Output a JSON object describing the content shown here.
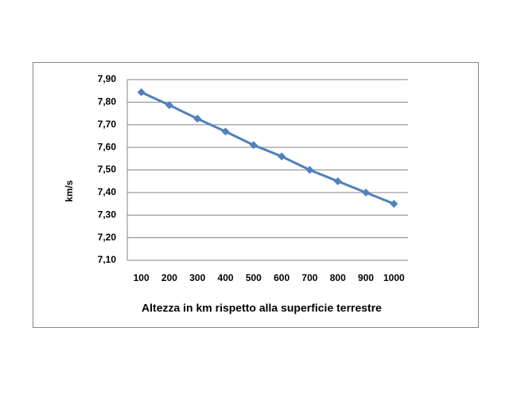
{
  "chart_data": {
    "type": "line",
    "x_label": "Altezza in km rispetto alla superficie terrestre",
    "y_label": "km/s",
    "categories": [
      "100",
      "200",
      "300",
      "400",
      "500",
      "600",
      "700",
      "800",
      "900",
      "1000"
    ],
    "series": [
      {
        "name": "km/s",
        "color": "#4f81bd",
        "values": [
          7.844,
          7.787,
          7.727,
          7.67,
          7.61,
          7.56,
          7.5,
          7.45,
          7.4,
          7.35
        ]
      }
    ],
    "ylim": [
      7.1,
      7.9
    ],
    "yticks": [
      {
        "value": 7.1,
        "label": "7,10"
      },
      {
        "value": 7.2,
        "label": "7,20"
      },
      {
        "value": 7.3,
        "label": "7,30"
      },
      {
        "value": 7.4,
        "label": "7,40"
      },
      {
        "value": 7.5,
        "label": "7,50"
      },
      {
        "value": 7.6,
        "label": "7,60"
      },
      {
        "value": 7.7,
        "label": "7,70"
      },
      {
        "value": 7.8,
        "label": "7,80"
      },
      {
        "value": 7.9,
        "label": "7,90"
      }
    ],
    "grid": true
  }
}
